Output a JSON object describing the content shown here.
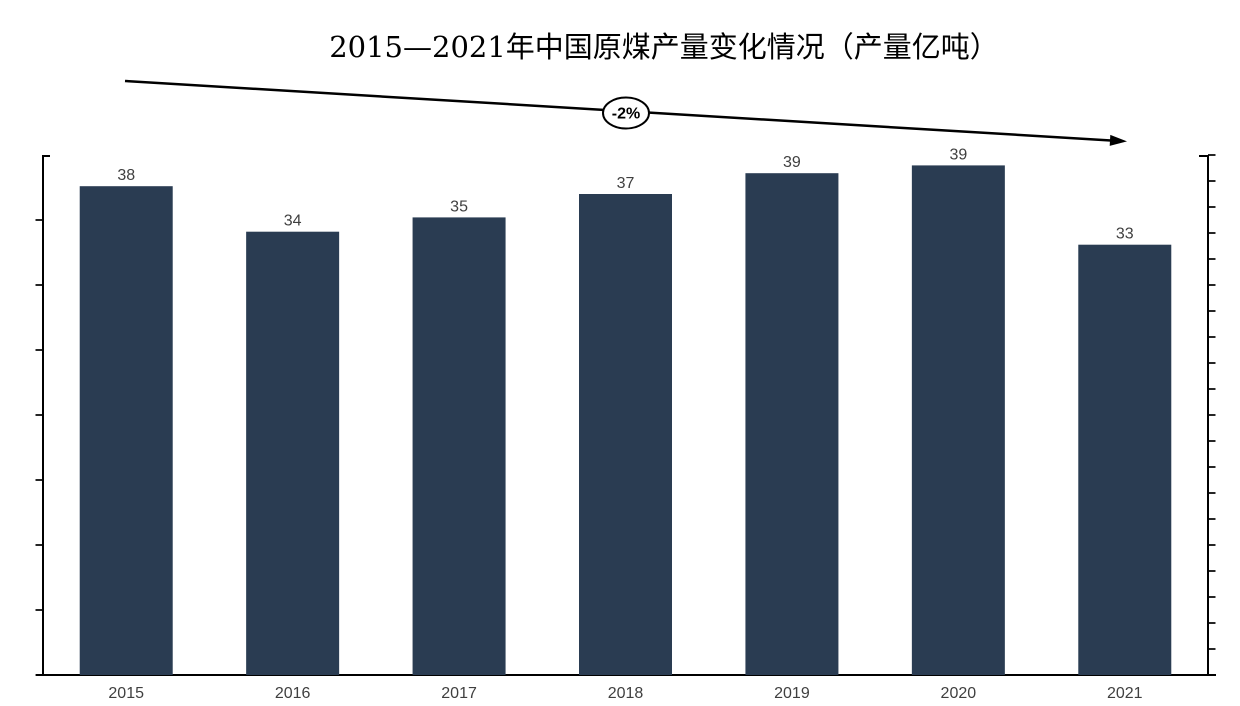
{
  "title": "2015—2021年中国原煤产量变化情况（产量亿吨）",
  "chart_data": {
    "type": "bar",
    "title": "2015—2021年中国原煤产量变化情况（产量亿吨）",
    "categories": [
      "2015",
      "2016",
      "2017",
      "2018",
      "2019",
      "2020",
      "2021"
    ],
    "values": [
      38,
      34,
      35,
      37,
      39,
      39,
      33
    ],
    "bar_heights_precise": [
      37.6,
      34.1,
      35.2,
      37.0,
      38.6,
      39.2,
      33.1
    ],
    "data_labels": [
      38,
      34,
      35,
      37,
      39,
      39,
      33
    ],
    "xlabel": "",
    "ylabel": "",
    "unit": "亿吨",
    "ylim": [
      0,
      40
    ],
    "left_axis_tick_interval": 5,
    "right_axis_tick_interval": 2,
    "grid": false,
    "legend": false,
    "annotation": {
      "label": "-2%",
      "description": "downward trend arrow from upper-left to right with -2% in an ellipse"
    },
    "colors": {
      "bar": "#2a3c52",
      "axis": "#000000",
      "label": "#3f3f3f",
      "title": "#000000",
      "background": "#ffffff"
    }
  }
}
